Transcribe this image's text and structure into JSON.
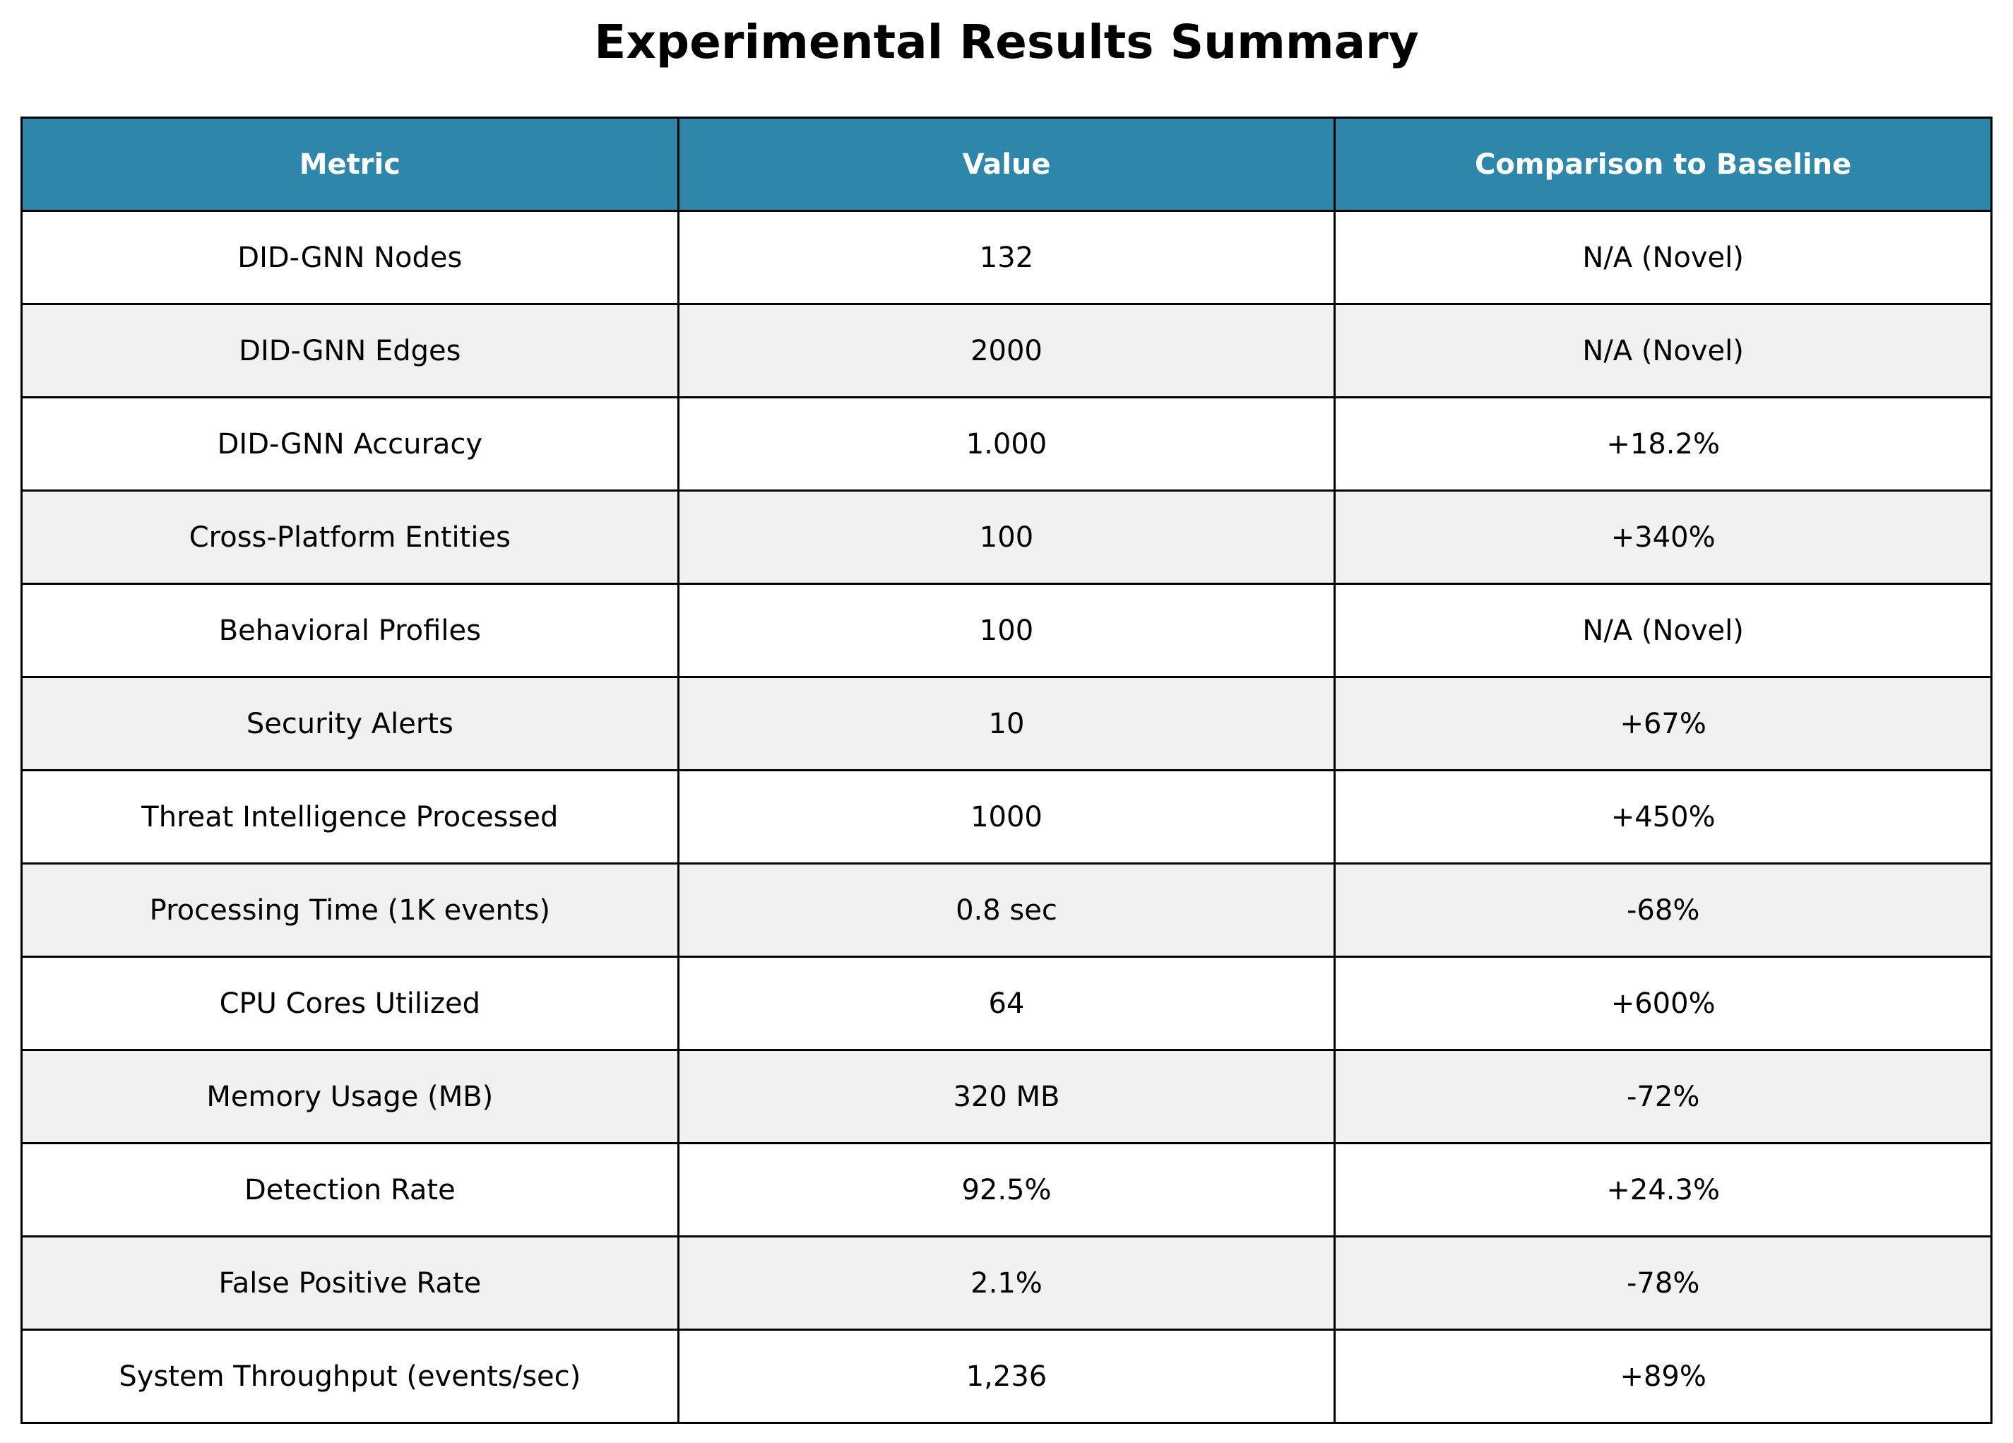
{
  "chart_data": {
    "type": "table",
    "title": "Experimental Results Summary",
    "columns": [
      "Metric",
      "Value",
      "Comparison to Baseline"
    ],
    "rows": [
      [
        "DID-GNN Nodes",
        "132",
        "N/A (Novel)"
      ],
      [
        "DID-GNN Edges",
        "2000",
        "N/A (Novel)"
      ],
      [
        "DID-GNN Accuracy",
        "1.000",
        "+18.2%"
      ],
      [
        "Cross-Platform Entities",
        "100",
        "+340%"
      ],
      [
        "Behavioral Profiles",
        "100",
        "N/A (Novel)"
      ],
      [
        "Security Alerts",
        "10",
        "+67%"
      ],
      [
        "Threat Intelligence Processed",
        "1000",
        "+450%"
      ],
      [
        "Processing Time (1K events)",
        "0.8 sec",
        "-68%"
      ],
      [
        "CPU Cores Utilized",
        "64",
        "+600%"
      ],
      [
        "Memory Usage (MB)",
        "320 MB",
        "-72%"
      ],
      [
        "Detection Rate",
        "92.5%",
        "+24.3%"
      ],
      [
        "False Positive Rate",
        "2.1%",
        "-78%"
      ],
      [
        "System Throughput (events/sec)",
        "1,236",
        "+89%"
      ]
    ]
  },
  "colors": {
    "header_background": "#2E86AB",
    "header_text": "#FFFFFF",
    "row_even_background": "#FFFFFF",
    "row_odd_background": "#F0F0F0",
    "border": "#000000"
  }
}
